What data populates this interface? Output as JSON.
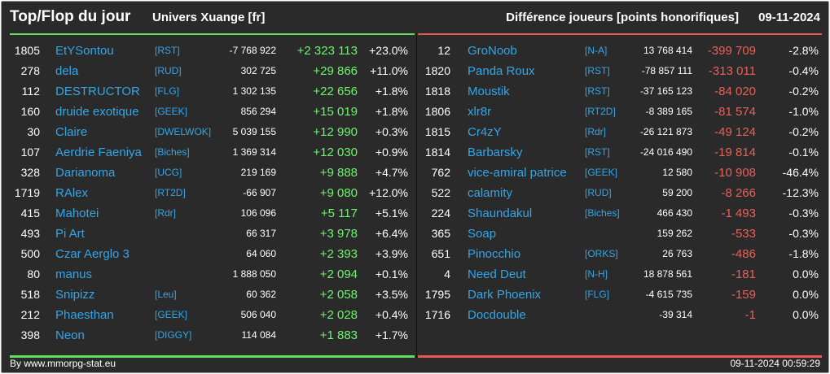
{
  "header": {
    "title": "Top/Flop du jour",
    "server": "Univers Xuange [fr]",
    "metric": "Différence joueurs [points honorifiques]",
    "date": "09-11-2024"
  },
  "colors": {
    "top_accent": "#5fe05f",
    "flop_accent": "#e85a4f",
    "name_link": "#33a6e8",
    "background": "#2a2a2a"
  },
  "top": [
    {
      "rank": "1805",
      "name": "EtYSontou",
      "alliance": "[RST]",
      "total": "-7 768 922",
      "delta": "+2 323 113",
      "pct": "+23.0%"
    },
    {
      "rank": "278",
      "name": "dela",
      "alliance": "[RUD]",
      "total": "302 725",
      "delta": "+29 866",
      "pct": "+11.0%"
    },
    {
      "rank": "112",
      "name": "DESTRUCTOR",
      "alliance": "[FLG]",
      "total": "1 302 135",
      "delta": "+22 656",
      "pct": "+1.8%"
    },
    {
      "rank": "160",
      "name": "druide exotique",
      "alliance": "[GEEK]",
      "total": "856 294",
      "delta": "+15 019",
      "pct": "+1.8%"
    },
    {
      "rank": "30",
      "name": "Claire",
      "alliance": "[DWELWOK]",
      "total": "5 039 155",
      "delta": "+12 990",
      "pct": "+0.3%"
    },
    {
      "rank": "107",
      "name": "Aerdrie Faeniya",
      "alliance": "[Biches]",
      "total": "1 369 314",
      "delta": "+12 030",
      "pct": "+0.9%"
    },
    {
      "rank": "328",
      "name": "Darianoma",
      "alliance": "[UCG]",
      "total": "219 169",
      "delta": "+9 888",
      "pct": "+4.7%"
    },
    {
      "rank": "1719",
      "name": "RAlex",
      "alliance": "[RT2D]",
      "total": "-66 907",
      "delta": "+9 080",
      "pct": "+12.0%"
    },
    {
      "rank": "415",
      "name": "Mahotei",
      "alliance": "[Rdr]",
      "total": "106 096",
      "delta": "+5 117",
      "pct": "+5.1%"
    },
    {
      "rank": "493",
      "name": "Pi Art",
      "alliance": "",
      "total": "66 317",
      "delta": "+3 978",
      "pct": "+6.4%"
    },
    {
      "rank": "500",
      "name": "Czar Aerglo 3",
      "alliance": "",
      "total": "64 060",
      "delta": "+2 393",
      "pct": "+3.9%"
    },
    {
      "rank": "80",
      "name": "manus",
      "alliance": "",
      "total": "1 888 050",
      "delta": "+2 094",
      "pct": "+0.1%"
    },
    {
      "rank": "518",
      "name": "Snipizz",
      "alliance": "[Leu]",
      "total": "60 362",
      "delta": "+2 058",
      "pct": "+3.5%"
    },
    {
      "rank": "212",
      "name": "Phaesthan",
      "alliance": "[GEEK]",
      "total": "506 040",
      "delta": "+2 028",
      "pct": "+0.4%"
    },
    {
      "rank": "398",
      "name": "Neon",
      "alliance": "[DIGGY]",
      "total": "114 084",
      "delta": "+1 883",
      "pct": "+1.7%"
    }
  ],
  "flop": [
    {
      "rank": "12",
      "name": "GroNoob",
      "alliance": "[N-A]",
      "total": "13 768 414",
      "delta": "-399 709",
      "pct": "-2.8%"
    },
    {
      "rank": "1820",
      "name": "Panda Roux",
      "alliance": "[RST]",
      "total": "-78 857 111",
      "delta": "-313 011",
      "pct": "-0.4%"
    },
    {
      "rank": "1818",
      "name": "Moustik",
      "alliance": "[RST]",
      "total": "-37 165 123",
      "delta": "-84 020",
      "pct": "-0.2%"
    },
    {
      "rank": "1806",
      "name": "xlr8r",
      "alliance": "[RT2D]",
      "total": "-8 389 165",
      "delta": "-81 574",
      "pct": "-1.0%"
    },
    {
      "rank": "1815",
      "name": "Cr4zY",
      "alliance": "[Rdr]",
      "total": "-26 121 873",
      "delta": "-49 124",
      "pct": "-0.2%"
    },
    {
      "rank": "1814",
      "name": "Barbarsky",
      "alliance": "[RST]",
      "total": "-24 016 490",
      "delta": "-19 814",
      "pct": "-0.1%"
    },
    {
      "rank": "762",
      "name": "vice-amiral patrice",
      "alliance": "[GEEK]",
      "total": "12 580",
      "delta": "-10 908",
      "pct": "-46.4%"
    },
    {
      "rank": "522",
      "name": "calamity",
      "alliance": "[RUD]",
      "total": "59 200",
      "delta": "-8 266",
      "pct": "-12.3%"
    },
    {
      "rank": "224",
      "name": "Shaundakul",
      "alliance": "[Biches]",
      "total": "466 430",
      "delta": "-1 493",
      "pct": "-0.3%"
    },
    {
      "rank": "365",
      "name": "Soap",
      "alliance": "",
      "total": "159 262",
      "delta": "-533",
      "pct": "-0.3%"
    },
    {
      "rank": "651",
      "name": "Pinocchio",
      "alliance": "[ORKS]",
      "total": "26 763",
      "delta": "-486",
      "pct": "-1.8%"
    },
    {
      "rank": "4",
      "name": "Need Deut",
      "alliance": "[N-H]",
      "total": "18 878 561",
      "delta": "-181",
      "pct": "0.0%"
    },
    {
      "rank": "1795",
      "name": "Dark Phoenix",
      "alliance": "[FLG]",
      "total": "-4 615 735",
      "delta": "-159",
      "pct": "0.0%"
    },
    {
      "rank": "1716",
      "name": "Docdouble",
      "alliance": "",
      "total": "-39 314",
      "delta": "-1",
      "pct": "0.0%"
    }
  ],
  "footer": {
    "site": "By www.mmorpg-stat.eu",
    "timestamp": "09-11-2024 00:59:29"
  }
}
